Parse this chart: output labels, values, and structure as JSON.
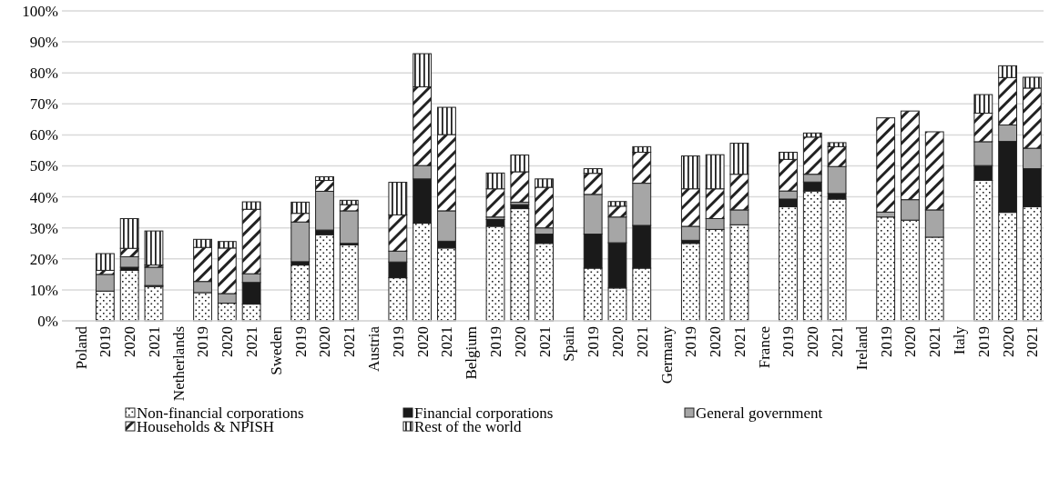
{
  "chart_data": {
    "type": "bar",
    "stacked": true,
    "grid": "y",
    "legend": "bottom",
    "categories": [
      "Poland",
      "2019",
      "2020",
      "2021",
      "Netherlands",
      "2019",
      "2020",
      "2021",
      "Sweden",
      "2019",
      "2020",
      "2021",
      "Austria",
      "2019",
      "2020",
      "2021",
      "Belgium",
      "2019",
      "2020",
      "2021",
      "Spain",
      "2019",
      "2020",
      "2021",
      "Germany",
      "2019",
      "2020",
      "2021",
      "France",
      "2019",
      "2020",
      "2021",
      "Ireland",
      "2019",
      "2020",
      "2021",
      "Italy",
      "2019",
      "2020",
      "2021"
    ],
    "ylim": [
      0,
      100
    ],
    "yticks": [
      {
        "value": 0,
        "label": "0%"
      },
      {
        "value": 10,
        "label": "10%"
      },
      {
        "value": 20,
        "label": "20%"
      },
      {
        "value": 30,
        "label": "30%"
      },
      {
        "value": 40,
        "label": "40%"
      },
      {
        "value": 50,
        "label": "50%"
      },
      {
        "value": 60,
        "label": "60%"
      },
      {
        "value": 70,
        "label": "70%"
      },
      {
        "value": 80,
        "label": "80%"
      },
      {
        "value": 90,
        "label": "90%"
      },
      {
        "value": 100,
        "label": "100%"
      }
    ],
    "series": [
      {
        "name": "Non-financial corporations",
        "color": "#222222",
        "values": [
          null,
          9.6,
          16.3,
          11.1,
          null,
          9.1,
          5.7,
          5.4,
          null,
          18,
          27.8,
          24.5,
          null,
          13.9,
          31.5,
          23.5,
          null,
          30.5,
          36.2,
          25,
          null,
          17,
          10.6,
          17,
          null,
          25,
          29.5,
          31,
          null,
          36.8,
          41.9,
          39.3,
          null,
          33.5,
          32.5,
          27,
          null,
          45.3,
          35,
          36.8
        ]
      },
      {
        "name": "Financial corporations",
        "color": "#1a1a1a",
        "values": [
          null,
          0,
          1,
          0.3,
          null,
          0,
          0,
          7,
          null,
          1.1,
          1.5,
          0.5,
          null,
          5.1,
          14.3,
          2.2,
          null,
          2.2,
          1.3,
          3,
          null,
          11,
          14.6,
          13.8,
          null,
          1,
          0,
          0,
          null,
          2.5,
          2.9,
          1.8,
          null,
          0,
          0,
          0,
          null,
          4.8,
          22.9,
          12.3
        ]
      },
      {
        "name": "General government",
        "color": "#a6a6a6",
        "values": [
          null,
          5.4,
          3.4,
          5.9,
          null,
          3.6,
          3.1,
          2.8,
          null,
          12.8,
          12.5,
          10.5,
          null,
          3.5,
          4.3,
          9.8,
          null,
          0.8,
          0.8,
          2,
          null,
          12.8,
          8.3,
          13.6,
          null,
          4.5,
          3.5,
          4.8,
          null,
          2.6,
          2.5,
          8.7,
          null,
          1.6,
          6.6,
          8.8,
          null,
          7.7,
          5.3,
          6.6
        ]
      },
      {
        "name": "Households & NPISH",
        "color": "#222222",
        "values": [
          null,
          1.3,
          2.7,
          0.7,
          null,
          11,
          14.7,
          20.8,
          null,
          2.8,
          3.5,
          2,
          null,
          11.7,
          25.4,
          24.6,
          null,
          9.1,
          9.8,
          13.1,
          null,
          6.8,
          3.5,
          10,
          null,
          12.1,
          9.6,
          11.5,
          null,
          10.2,
          12,
          6.4,
          null,
          30.4,
          28.6,
          25.2,
          null,
          9.2,
          15.3,
          19.4
        ]
      },
      {
        "name": "Rest of the world",
        "color": "#222222",
        "values": [
          null,
          5.4,
          9.6,
          11,
          null,
          2.6,
          2.1,
          2.4,
          null,
          3.6,
          1.2,
          1.4,
          null,
          10.5,
          10.7,
          8.8,
          null,
          5.1,
          5.4,
          2.7,
          null,
          1.5,
          1.5,
          1.8,
          null,
          10.6,
          11,
          10,
          null,
          2.3,
          1.3,
          1.3,
          null,
          0,
          0,
          0,
          null,
          6,
          3.8,
          3.5
        ]
      }
    ]
  }
}
